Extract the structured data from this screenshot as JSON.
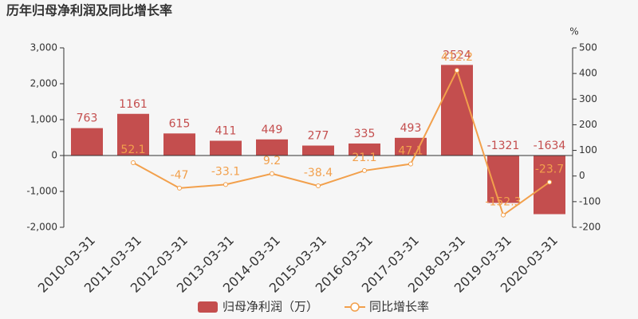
{
  "chart_data": {
    "type": "bar_line",
    "title": "历年归母净利润及同比增长率",
    "y2_label": "%",
    "categories": [
      "2010-03-31",
      "2011-03-31",
      "2012-03-31",
      "2013-03-31",
      "2014-03-31",
      "2015-03-31",
      "2016-03-31",
      "2017-03-31",
      "2018-03-31",
      "2019-03-31",
      "2020-03-31"
    ],
    "series": [
      {
        "name": "归母净利润（万）",
        "type": "bar",
        "color": "#c44e4e",
        "values": [
          763,
          1161,
          615,
          411,
          449,
          277,
          335,
          493,
          2524,
          -1321,
          -1634
        ]
      },
      {
        "name": "同比增长率",
        "type": "line",
        "axis": "y2",
        "color": "#f2a04c",
        "values": [
          null,
          52.1,
          -47,
          -33.1,
          9.2,
          -38.4,
          21.1,
          47.1,
          412.2,
          -152.3,
          -23.7
        ]
      }
    ],
    "ylim": [
      -2000,
      3000
    ],
    "yticks": [
      {
        "value": -2000,
        "label": "-2,000"
      },
      {
        "value": -1000,
        "label": "-1,000"
      },
      0,
      {
        "value": 1000,
        "label": "1,000"
      },
      {
        "value": 2000,
        "label": "2,000"
      },
      {
        "value": 3000,
        "label": "3,000"
      }
    ],
    "y2lim": [
      -200,
      500
    ],
    "y2ticks": [
      -200,
      -100,
      0,
      100,
      200,
      300,
      400,
      500
    ],
    "grid": false
  }
}
